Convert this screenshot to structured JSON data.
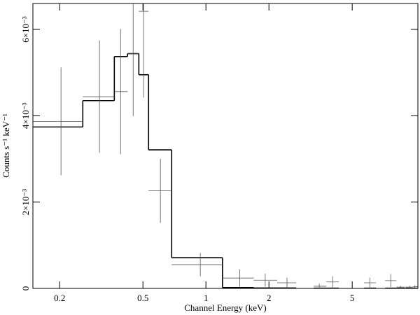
{
  "chart_data": {
    "type": "errorbar-step",
    "x_label": "Channel Energy (keV)",
    "y_label": "Counts s⁻¹ keV⁻¹",
    "xscale": "log",
    "xlim": [
      0.149,
      10.3
    ],
    "ylim": [
      0,
      0.0066
    ],
    "xticks": [
      0.2,
      0.5,
      1,
      2,
      5
    ],
    "yticks": [
      0,
      {
        "value": 0.002,
        "label": "2×10⁻³"
      },
      {
        "value": 0.004,
        "label": "4×10⁻³"
      },
      {
        "value": 0.006,
        "label": "6×10⁻³"
      }
    ],
    "data": {
      "color": "#555555",
      "x": [
        0.203,
        0.31,
        0.391,
        0.449,
        0.504,
        0.606,
        0.94,
        1.45,
        1.92,
        2.44,
        3.48,
        4.03,
        6.07,
        7.64,
        8.51,
        9.4,
        9.95
      ],
      "x_low": [
        0.149,
        0.258,
        0.365,
        0.422,
        0.478,
        0.532,
        0.686,
        1.2,
        1.69,
        2.19,
        3.27,
        3.76,
        5.7,
        7.18,
        8.15,
        8.98,
        9.8
      ],
      "x_high": [
        0.258,
        0.365,
        0.422,
        0.478,
        0.532,
        0.686,
        1.2,
        1.69,
        2.19,
        2.7,
        3.76,
        4.32,
        6.5,
        8.13,
        8.92,
        9.8,
        10.3
      ],
      "y": [
        0.00387,
        0.00444,
        0.00456,
        0.00544,
        0.00642,
        0.00226,
        0.00055,
        0.00024,
        0.00019,
        0.00013,
        5e-05,
        0.00015,
        0.00013,
        0.00018,
        3e-05,
        3e-05,
        4e-05
      ],
      "y_err": [
        0.00125,
        0.0013,
        0.00145,
        0.00145,
        0.002,
        0.00074,
        0.00027,
        0.0002,
        0.00015,
        0.00012,
        6e-05,
        0.00013,
        0.00012,
        0.00015,
        3e-05,
        3e-05,
        3e-05
      ]
    },
    "model": {
      "color": "#000000",
      "values": [
        0.00374,
        0.00435,
        0.00537,
        0.00544,
        0.00495,
        0.00321,
        0.00071,
        2e-05,
        1e-05,
        1e-05,
        5e-06,
        5e-06,
        5e-06,
        5e-06,
        5e-06,
        5e-06,
        5e-06
      ]
    }
  }
}
